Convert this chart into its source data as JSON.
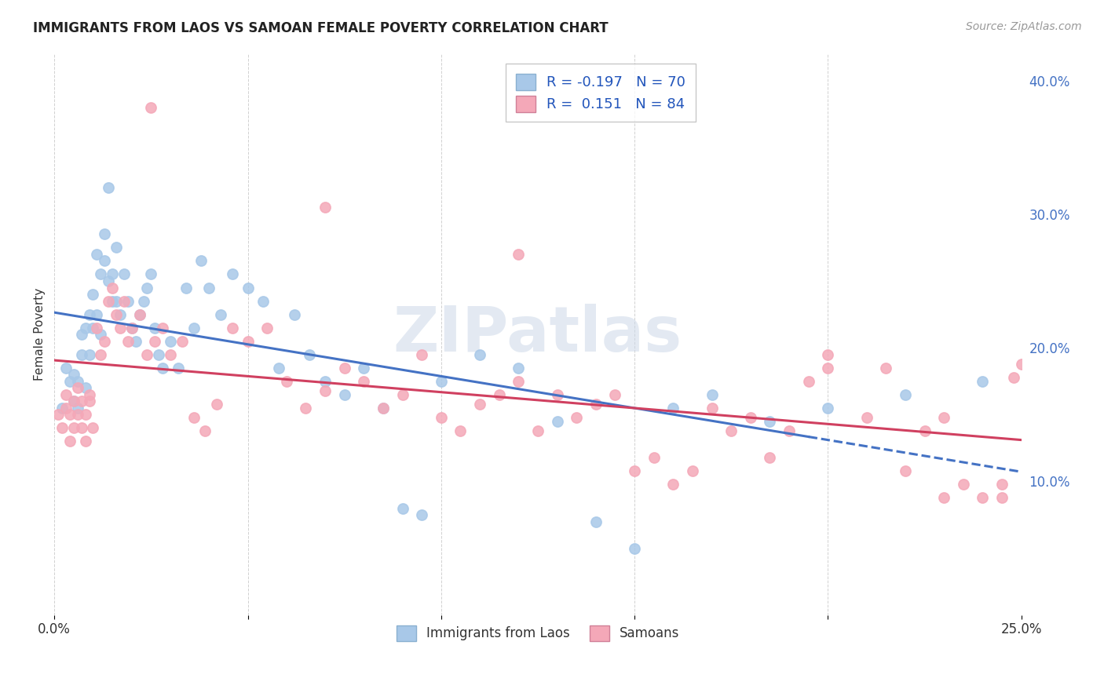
{
  "title": "IMMIGRANTS FROM LAOS VS SAMOAN FEMALE POVERTY CORRELATION CHART",
  "source": "Source: ZipAtlas.com",
  "ylabel": "Female Poverty",
  "right_yticks": [
    "10.0%",
    "20.0%",
    "30.0%",
    "40.0%"
  ],
  "right_ytick_vals": [
    0.1,
    0.2,
    0.3,
    0.4
  ],
  "xlim": [
    0.0,
    0.25
  ],
  "ylim": [
    0.0,
    0.42
  ],
  "blue_color": "#a8c8e8",
  "pink_color": "#f4a8b8",
  "line_blue": "#4472c4",
  "line_pink": "#d04060",
  "watermark": "ZIPatlas",
  "laos_x": [
    0.002,
    0.003,
    0.004,
    0.005,
    0.005,
    0.006,
    0.006,
    0.007,
    0.007,
    0.008,
    0.008,
    0.009,
    0.009,
    0.01,
    0.01,
    0.011,
    0.011,
    0.012,
    0.012,
    0.013,
    0.013,
    0.014,
    0.014,
    0.015,
    0.015,
    0.016,
    0.016,
    0.017,
    0.018,
    0.019,
    0.02,
    0.021,
    0.022,
    0.023,
    0.024,
    0.025,
    0.026,
    0.027,
    0.028,
    0.03,
    0.032,
    0.034,
    0.036,
    0.038,
    0.04,
    0.043,
    0.046,
    0.05,
    0.054,
    0.058,
    0.062,
    0.066,
    0.07,
    0.075,
    0.08,
    0.085,
    0.09,
    0.095,
    0.1,
    0.11,
    0.12,
    0.13,
    0.14,
    0.15,
    0.16,
    0.17,
    0.185,
    0.2,
    0.22,
    0.24
  ],
  "laos_y": [
    0.155,
    0.185,
    0.175,
    0.16,
    0.18,
    0.155,
    0.175,
    0.21,
    0.195,
    0.17,
    0.215,
    0.195,
    0.225,
    0.215,
    0.24,
    0.225,
    0.27,
    0.21,
    0.255,
    0.265,
    0.285,
    0.25,
    0.32,
    0.255,
    0.235,
    0.275,
    0.235,
    0.225,
    0.255,
    0.235,
    0.215,
    0.205,
    0.225,
    0.235,
    0.245,
    0.255,
    0.215,
    0.195,
    0.185,
    0.205,
    0.185,
    0.245,
    0.215,
    0.265,
    0.245,
    0.225,
    0.255,
    0.245,
    0.235,
    0.185,
    0.225,
    0.195,
    0.175,
    0.165,
    0.185,
    0.155,
    0.08,
    0.075,
    0.175,
    0.195,
    0.185,
    0.145,
    0.07,
    0.05,
    0.155,
    0.165,
    0.145,
    0.155,
    0.165,
    0.175
  ],
  "samoan_x": [
    0.001,
    0.002,
    0.003,
    0.003,
    0.004,
    0.004,
    0.005,
    0.005,
    0.006,
    0.006,
    0.007,
    0.007,
    0.008,
    0.008,
    0.009,
    0.009,
    0.01,
    0.011,
    0.012,
    0.013,
    0.014,
    0.015,
    0.016,
    0.017,
    0.018,
    0.019,
    0.02,
    0.022,
    0.024,
    0.026,
    0.028,
    0.03,
    0.033,
    0.036,
    0.039,
    0.042,
    0.046,
    0.05,
    0.055,
    0.06,
    0.065,
    0.07,
    0.075,
    0.08,
    0.085,
    0.09,
    0.095,
    0.1,
    0.105,
    0.11,
    0.115,
    0.12,
    0.125,
    0.13,
    0.135,
    0.14,
    0.145,
    0.15,
    0.155,
    0.16,
    0.165,
    0.17,
    0.175,
    0.18,
    0.185,
    0.19,
    0.195,
    0.2,
    0.21,
    0.215,
    0.22,
    0.225,
    0.23,
    0.235,
    0.24,
    0.245,
    0.248,
    0.25,
    0.025,
    0.07,
    0.12,
    0.2,
    0.23,
    0.245
  ],
  "samoan_y": [
    0.15,
    0.14,
    0.155,
    0.165,
    0.13,
    0.15,
    0.14,
    0.16,
    0.15,
    0.17,
    0.14,
    0.16,
    0.15,
    0.13,
    0.16,
    0.165,
    0.14,
    0.215,
    0.195,
    0.205,
    0.235,
    0.245,
    0.225,
    0.215,
    0.235,
    0.205,
    0.215,
    0.225,
    0.195,
    0.205,
    0.215,
    0.195,
    0.205,
    0.148,
    0.138,
    0.158,
    0.215,
    0.205,
    0.215,
    0.175,
    0.155,
    0.168,
    0.185,
    0.175,
    0.155,
    0.165,
    0.195,
    0.148,
    0.138,
    0.158,
    0.165,
    0.175,
    0.138,
    0.165,
    0.148,
    0.158,
    0.165,
    0.108,
    0.118,
    0.098,
    0.108,
    0.155,
    0.138,
    0.148,
    0.118,
    0.138,
    0.175,
    0.185,
    0.148,
    0.185,
    0.108,
    0.138,
    0.088,
    0.098,
    0.088,
    0.088,
    0.178,
    0.188,
    0.38,
    0.305,
    0.27,
    0.195,
    0.148,
    0.098
  ],
  "grid_color": "#cccccc",
  "bg_color": "#ffffff"
}
